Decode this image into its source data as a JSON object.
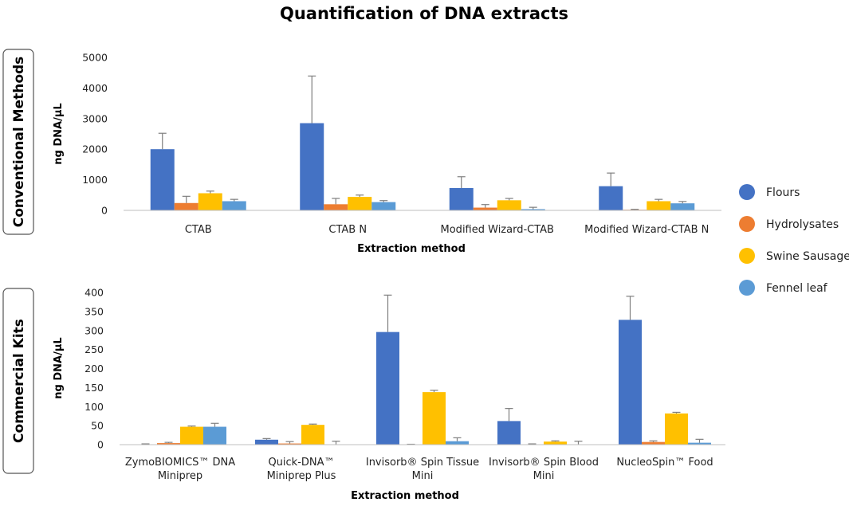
{
  "title": "Quantification of DNA extracts",
  "colors": {
    "Flours": "#4472C4",
    "Hydrolysates": "#ED7D31",
    "Swine Sausage": "#FFC000",
    "Fennel leaf": "#5B9BD5",
    "error_bar": "#7f7f7f",
    "axis": "#bfbfbf"
  },
  "legend": {
    "position": "right",
    "entries": [
      "Flours",
      "Hydrolysates",
      "Swine Sausage",
      "Fennel leaf"
    ]
  },
  "chart_data": [
    {
      "type": "bar",
      "panel_label": "Conventional Methods",
      "ylabel": "ng DNA/µL",
      "xlabel": "Extraction method",
      "ylim": [
        0,
        5000
      ],
      "yticks": [
        0,
        1000,
        2000,
        3000,
        4000,
        5000
      ],
      "categories": [
        [
          "CTAB"
        ],
        [
          "CTAB N"
        ],
        [
          "Modified Wizard-CTAB"
        ],
        [
          "Modified Wizard-CTAB N"
        ]
      ],
      "series": [
        {
          "name": "Flours",
          "values": [
            2000,
            2850,
            730,
            790
          ],
          "errors": [
            520,
            1540,
            370,
            430
          ]
        },
        {
          "name": "Hydrolysates",
          "values": [
            240,
            200,
            90,
            20
          ],
          "errors": [
            220,
            190,
            100,
            15
          ]
        },
        {
          "name": "Swine Sausage",
          "values": [
            560,
            440,
            330,
            300
          ],
          "errors": [
            70,
            60,
            60,
            60
          ]
        },
        {
          "name": "Fennel leaf",
          "values": [
            300,
            270,
            40,
            230
          ],
          "errors": [
            60,
            50,
            60,
            60
          ]
        }
      ]
    },
    {
      "type": "bar",
      "panel_label": "Commercial Kits",
      "ylabel": "ng DNA/µL",
      "xlabel": "Extraction method",
      "ylim": [
        0,
        400
      ],
      "yticks": [
        0,
        50,
        100,
        150,
        200,
        250,
        300,
        350,
        400
      ],
      "categories": [
        [
          "ZymoBIOMICS™ DNA",
          "Miniprep"
        ],
        [
          "Quick-DNA™",
          "Miniprep Plus"
        ],
        [
          "Invisorb® Spin Tissue",
          "Mini"
        ],
        [
          "Invisorb® Spin Blood",
          "Mini"
        ],
        [
          "NucleoSpin™ Food"
        ]
      ],
      "series": [
        {
          "name": "Flours",
          "values": [
            1,
            13,
            296,
            62,
            328
          ],
          "errors": [
            1,
            3,
            97,
            33,
            62
          ]
        },
        {
          "name": "Hydrolysates",
          "values": [
            4,
            3,
            0,
            0,
            7
          ],
          "errors": [
            2,
            5,
            1,
            2,
            3
          ]
        },
        {
          "name": "Swine Sausage",
          "values": [
            47,
            52,
            138,
            8,
            82
          ],
          "errors": [
            2,
            2,
            5,
            2,
            3
          ]
        },
        {
          "name": "Fennel leaf",
          "values": [
            47,
            0,
            9,
            0,
            5
          ],
          "errors": [
            9,
            9,
            9,
            9,
            9
          ]
        }
      ]
    }
  ]
}
